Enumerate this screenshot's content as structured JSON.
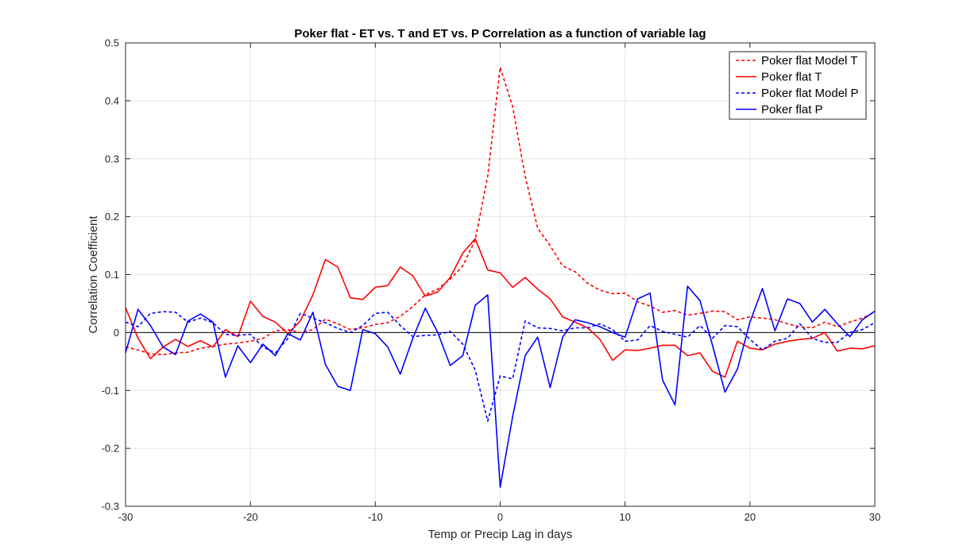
{
  "chart_data": {
    "type": "line",
    "title": "Poker flat - ET vs. T and ET vs. P Correlation as a function of variable lag",
    "xlabel": "Temp or Precip Lag in days",
    "ylabel": "Correlation Coefficient",
    "xlim": [
      -30,
      30
    ],
    "ylim": [
      -0.3,
      0.5
    ],
    "xticks": [
      -30,
      -20,
      -10,
      0,
      10,
      20,
      30
    ],
    "yticks": [
      -0.3,
      -0.2,
      -0.1,
      0,
      0.1,
      0.2,
      0.3,
      0.4,
      0.5
    ],
    "xtick_labels": [
      "-30",
      "-20",
      "-10",
      "0",
      "10",
      "20",
      "30"
    ],
    "ytick_labels": [
      "-0.3",
      "-0.2",
      "-0.1",
      "0",
      "0.1",
      "0.2",
      "0.3",
      "0.4",
      "0.5"
    ],
    "grid": true,
    "zero_line": true,
    "legend_position": "top-right",
    "x": [
      -30,
      -29,
      -28,
      -27,
      -26,
      -25,
      -24,
      -23,
      -22,
      -21,
      -20,
      -19,
      -18,
      -17,
      -16,
      -15,
      -14,
      -13,
      -12,
      -11,
      -10,
      -9,
      -8,
      -7,
      -6,
      -5,
      -4,
      -3,
      -2,
      -1,
      0,
      1,
      2,
      3,
      4,
      5,
      6,
      7,
      8,
      9,
      10,
      11,
      12,
      13,
      14,
      15,
      16,
      17,
      18,
      19,
      20,
      21,
      22,
      23,
      24,
      25,
      26,
      27,
      28,
      29,
      30
    ],
    "series": [
      {
        "name": "Poker flat Model T",
        "color": "#ff0000",
        "dash": "dashed",
        "values": [
          -0.025,
          -0.03,
          -0.037,
          -0.038,
          -0.035,
          -0.034,
          -0.027,
          -0.024,
          -0.02,
          -0.018,
          -0.015,
          -0.01,
          0.003,
          0.005,
          0.0,
          0.005,
          0.023,
          0.015,
          0.005,
          0.008,
          0.014,
          0.017,
          0.028,
          0.045,
          0.065,
          0.075,
          0.092,
          0.115,
          0.16,
          0.27,
          0.458,
          0.39,
          0.27,
          0.18,
          0.15,
          0.115,
          0.105,
          0.085,
          0.073,
          0.067,
          0.068,
          0.053,
          0.046,
          0.035,
          0.038,
          0.03,
          0.033,
          0.037,
          0.036,
          0.022,
          0.027,
          0.025,
          0.022,
          0.015,
          0.01,
          0.008,
          0.018,
          0.01,
          0.018,
          0.025,
          0.035
        ]
      },
      {
        "name": "Poker flat T",
        "color": "#ff0000",
        "dash": "solid",
        "values": [
          0.043,
          -0.01,
          -0.045,
          -0.025,
          -0.012,
          -0.024,
          -0.014,
          -0.025,
          0.005,
          -0.007,
          0.054,
          0.028,
          0.018,
          -0.002,
          0.02,
          0.065,
          0.126,
          0.113,
          0.06,
          0.057,
          0.078,
          0.081,
          0.113,
          0.098,
          0.063,
          0.07,
          0.095,
          0.137,
          0.162,
          0.108,
          0.103,
          0.078,
          0.095,
          0.075,
          0.058,
          0.027,
          0.018,
          0.008,
          -0.012,
          -0.048,
          -0.03,
          -0.031,
          -0.027,
          -0.022,
          -0.022,
          -0.04,
          -0.035,
          -0.067,
          -0.077,
          -0.015,
          -0.027,
          -0.03,
          -0.02,
          -0.015,
          -0.012,
          -0.01,
          0.0,
          -0.032,
          -0.027,
          -0.028,
          -0.023
        ]
      },
      {
        "name": "Poker flat Model P",
        "color": "#0000ff",
        "dash": "dashed",
        "values": [
          0.018,
          0.01,
          0.033,
          0.036,
          0.035,
          0.018,
          0.025,
          0.017,
          -0.003,
          -0.005,
          -0.003,
          -0.025,
          -0.035,
          -0.01,
          0.033,
          0.025,
          0.017,
          0.007,
          0.0,
          0.012,
          0.033,
          0.035,
          0.012,
          -0.007,
          -0.005,
          -0.004,
          0.002,
          -0.02,
          -0.065,
          -0.153,
          -0.075,
          -0.08,
          0.02,
          0.008,
          0.007,
          0.003,
          0.008,
          0.008,
          0.015,
          0.005,
          -0.015,
          -0.013,
          0.012,
          0.002,
          -0.003,
          -0.008,
          0.012,
          -0.01,
          0.012,
          0.01,
          -0.012,
          -0.03,
          -0.015,
          -0.01,
          0.015,
          -0.01,
          -0.017,
          -0.017,
          0.0,
          0.005,
          0.017
        ]
      },
      {
        "name": "Poker flat P",
        "color": "#0000ff",
        "dash": "solid",
        "values": [
          -0.035,
          0.04,
          0.012,
          -0.025,
          -0.038,
          0.02,
          0.032,
          0.018,
          -0.077,
          -0.023,
          -0.052,
          -0.02,
          -0.04,
          -0.002,
          -0.013,
          0.035,
          -0.055,
          -0.093,
          -0.1,
          0.005,
          -0.002,
          -0.025,
          -0.072,
          -0.01,
          0.042,
          0.0,
          -0.057,
          -0.04,
          0.047,
          0.065,
          -0.267,
          -0.145,
          -0.04,
          -0.008,
          -0.095,
          -0.008,
          0.022,
          0.017,
          0.01,
          0.0,
          -0.008,
          0.058,
          0.068,
          -0.082,
          -0.125,
          0.08,
          0.055,
          -0.022,
          -0.103,
          -0.063,
          0.018,
          0.076,
          0.003,
          0.058,
          0.05,
          0.018,
          0.04,
          0.015,
          -0.007,
          0.022,
          0.037
        ]
      }
    ]
  }
}
